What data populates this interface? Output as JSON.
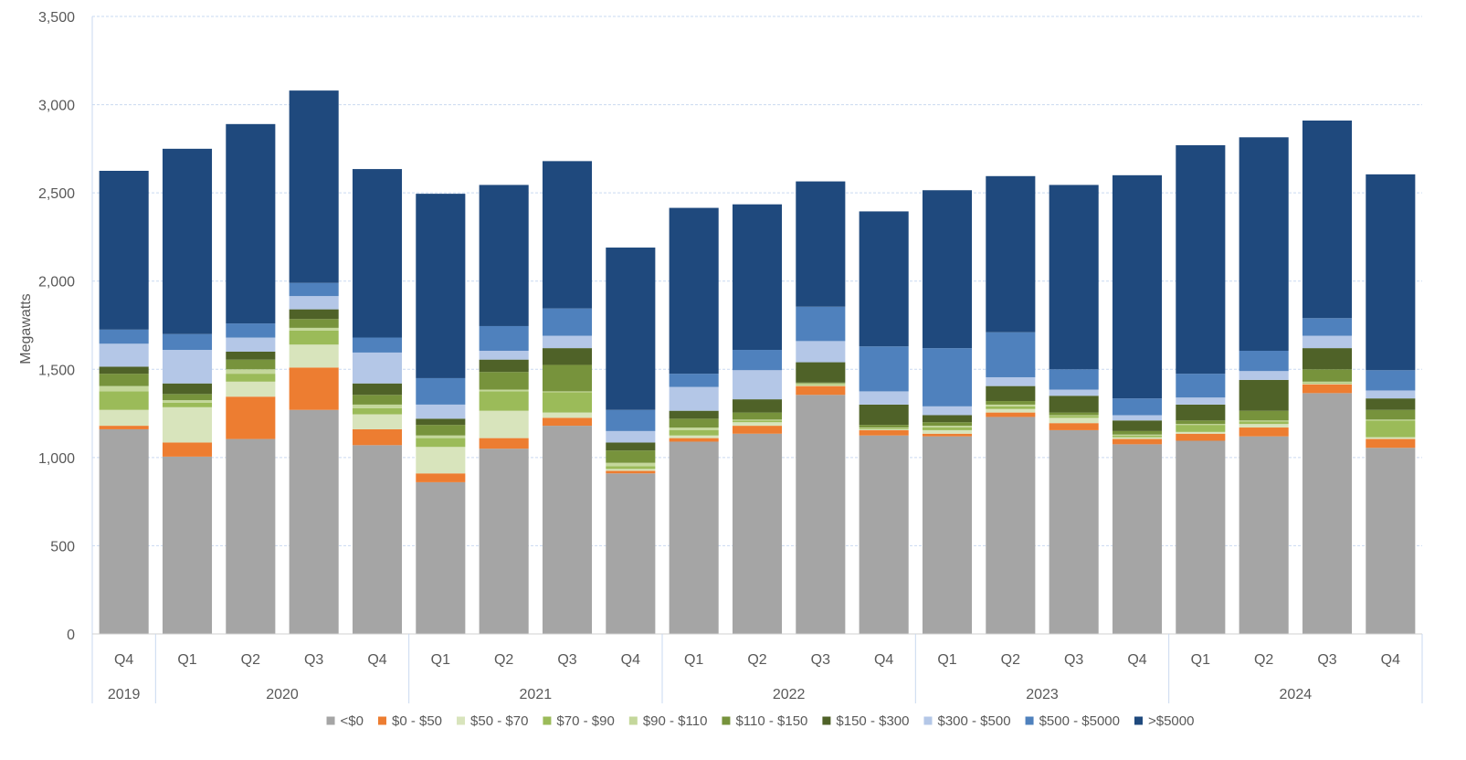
{
  "chart_data": {
    "type": "bar",
    "stacked": true,
    "ylabel": "Megawatts",
    "ylim": [
      0,
      3500
    ],
    "yticks": [
      "0",
      "500",
      "1,000",
      "1,500",
      "2,000",
      "2,500",
      "3,000",
      "3,500"
    ],
    "ytick_values": [
      0,
      500,
      1000,
      1500,
      2000,
      2500,
      3000,
      3500
    ],
    "grid": true,
    "legend_position": "bottom",
    "categories": [
      "Q4",
      "Q1",
      "Q2",
      "Q3",
      "Q4",
      "Q1",
      "Q2",
      "Q3",
      "Q4",
      "Q1",
      "Q2",
      "Q3",
      "Q4",
      "Q1",
      "Q2",
      "Q3",
      "Q4",
      "Q1",
      "Q2",
      "Q3",
      "Q4"
    ],
    "year_groups": [
      {
        "label": "2019",
        "start": 0,
        "end": 0
      },
      {
        "label": "2020",
        "start": 1,
        "end": 4
      },
      {
        "label": "2021",
        "start": 5,
        "end": 8
      },
      {
        "label": "2022",
        "start": 9,
        "end": 12
      },
      {
        "label": "2023",
        "start": 13,
        "end": 16
      },
      {
        "label": "2024",
        "start": 17,
        "end": 20
      }
    ],
    "series": [
      {
        "name": "<$0",
        "color": "#a5a5a5",
        "values": [
          1160,
          1005,
          1105,
          1270,
          1070,
          860,
          1050,
          1180,
          910,
          1090,
          1135,
          1355,
          1125,
          1120,
          1230,
          1155,
          1075,
          1095,
          1120,
          1365,
          1055
        ]
      },
      {
        "name": "$0 - $50",
        "color": "#ed7d31",
        "values": [
          20,
          80,
          240,
          240,
          90,
          50,
          60,
          45,
          15,
          20,
          45,
          50,
          30,
          15,
          25,
          40,
          30,
          40,
          50,
          50,
          50
        ]
      },
      {
        "name": "$50 - $70",
        "color": "#d8e4bc",
        "values": [
          90,
          200,
          85,
          130,
          85,
          150,
          155,
          30,
          10,
          15,
          20,
          5,
          5,
          20,
          20,
          30,
          10,
          10,
          20,
          5,
          10
        ]
      },
      {
        "name": "$70 - $90",
        "color": "#9bbb59",
        "values": [
          105,
          25,
          45,
          80,
          35,
          50,
          110,
          115,
          15,
          30,
          10,
          5,
          5,
          15,
          15,
          10,
          10,
          40,
          15,
          5,
          95
        ]
      },
      {
        "name": "$90 - $110",
        "color": "#c4d79b",
        "values": [
          30,
          15,
          25,
          15,
          20,
          15,
          10,
          5,
          20,
          15,
          5,
          5,
          5,
          10,
          10,
          5,
          5,
          5,
          5,
          5,
          5
        ]
      },
      {
        "name": "$110 - $150",
        "color": "#77933c",
        "values": [
          70,
          35,
          55,
          50,
          55,
          60,
          100,
          150,
          70,
          50,
          40,
          5,
          15,
          20,
          20,
          15,
          20,
          20,
          55,
          70,
          55
        ]
      },
      {
        "name": "$150 - $300",
        "color": "#4f6228",
        "values": [
          40,
          60,
          45,
          55,
          65,
          35,
          70,
          95,
          45,
          45,
          75,
          115,
          115,
          40,
          85,
          95,
          60,
          90,
          175,
          120,
          65
        ]
      },
      {
        "name": "$300 - $500",
        "color": "#b4c7e7",
        "values": [
          130,
          190,
          80,
          75,
          175,
          80,
          50,
          70,
          65,
          135,
          165,
          120,
          75,
          50,
          50,
          35,
          30,
          40,
          50,
          70,
          45
        ]
      },
      {
        "name": "$500 - $5000",
        "color": "#4f81bd",
        "values": [
          80,
          90,
          80,
          75,
          85,
          150,
          140,
          155,
          120,
          75,
          115,
          195,
          255,
          330,
          255,
          115,
          95,
          135,
          115,
          100,
          115
        ]
      },
      {
        "name": ">$5000",
        "color": "#1f497d",
        "values": [
          900,
          1050,
          1130,
          1090,
          955,
          1045,
          800,
          835,
          920,
          940,
          825,
          710,
          765,
          895,
          885,
          1045,
          1265,
          1295,
          1210,
          1120,
          1110
        ]
      }
    ]
  }
}
